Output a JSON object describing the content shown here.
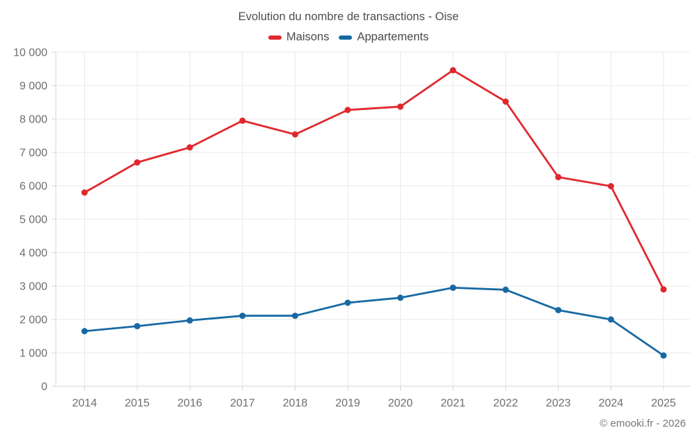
{
  "title": "Evolution du nombre de transactions - Oise",
  "footer": "© emooki.fr - 2026",
  "colors": {
    "maisons": "#e0282e",
    "appartements": "#1769a3",
    "grid": "#e8e8e8",
    "axis": "#d4d4d4",
    "tick_text": "#6e6e6e"
  },
  "chart_data": {
    "type": "line",
    "title": "Evolution du nombre de transactions - Oise",
    "categories": [
      "2014",
      "2015",
      "2016",
      "2017",
      "2018",
      "2019",
      "2020",
      "2021",
      "2022",
      "2023",
      "2024",
      "2025"
    ],
    "series": [
      {
        "name": "Maisons",
        "color": "#e0282e",
        "values": [
          5800,
          6700,
          7150,
          7950,
          7540,
          8270,
          8370,
          9460,
          8520,
          6260,
          5990,
          2900
        ]
      },
      {
        "name": "Appartements",
        "color": "#1769a3",
        "values": [
          1650,
          1800,
          1970,
          2110,
          2110,
          2500,
          2650,
          2950,
          2890,
          2280,
          2000,
          920
        ]
      }
    ],
    "xlabel": "",
    "ylabel": "",
    "ylim": [
      0,
      10000
    ],
    "yticks": [
      0,
      1000,
      2000,
      3000,
      4000,
      5000,
      6000,
      7000,
      8000,
      9000,
      10000
    ],
    "ytick_labels": [
      "0",
      "1 000",
      "2 000",
      "3 000",
      "4 000",
      "5 000",
      "6 000",
      "7 000",
      "8 000",
      "9 000",
      "10 000"
    ],
    "grid": true,
    "legend_position": "top",
    "marker": "circle"
  }
}
